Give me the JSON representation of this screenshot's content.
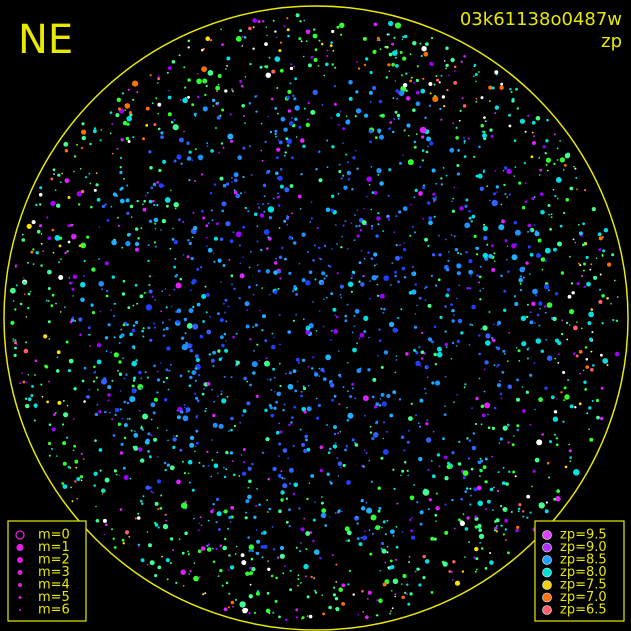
{
  "corner_label": "NE",
  "header": {
    "id": "03k61138o0487w",
    "mode": "zp"
  },
  "magnitude_legend": [
    "m=0",
    "m=1",
    "m=2",
    "m=3",
    "m=4",
    "m=5",
    "m=6"
  ],
  "zp_legend": [
    "zp=9.5",
    "zp=9.0",
    "zp=8.5",
    "zp=8.0",
    "zp=7.5",
    "zp=7.0",
    "zp=6.5"
  ]
}
